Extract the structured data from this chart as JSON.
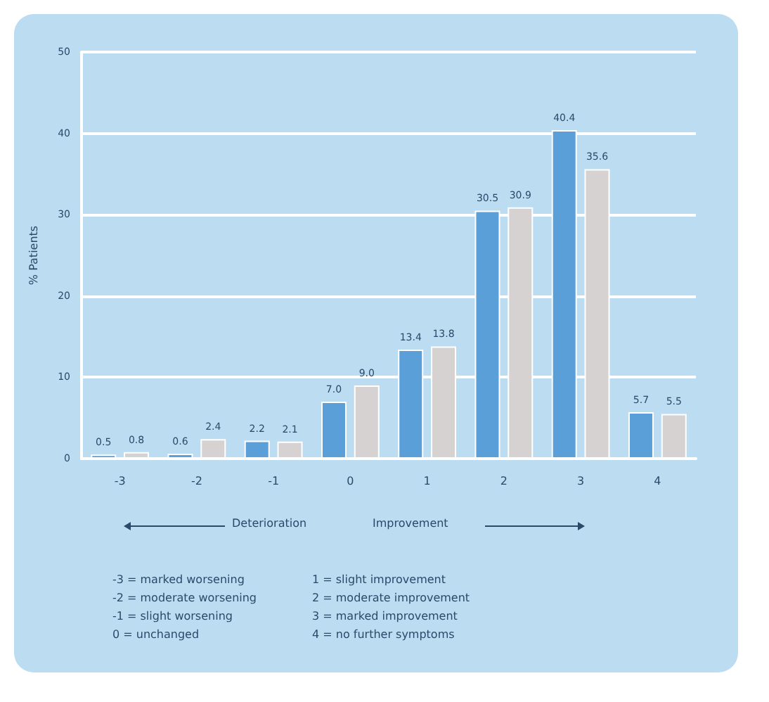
{
  "chart_data": {
    "type": "bar",
    "ylabel": "% Patients",
    "categories": [
      "-3",
      "-2",
      "-1",
      "0",
      "1",
      "2",
      "3",
      "4"
    ],
    "series": [
      {
        "color": "#5a9fd8",
        "values": [
          0.5,
          0.6,
          2.2,
          7.0,
          13.4,
          30.5,
          40.4,
          5.7
        ],
        "value_labels": [
          "0.5",
          "0.6",
          "2.2",
          "7.0",
          "13.4",
          "30.5",
          "40.4",
          "5.7"
        ]
      },
      {
        "color": "#d6d2d2",
        "values": [
          0.8,
          2.4,
          2.1,
          9.0,
          13.8,
          30.9,
          35.6,
          5.5
        ],
        "value_labels": [
          "0.8",
          "2.4",
          "2.1",
          "9.0",
          "13.8",
          "30.9",
          "35.6",
          "5.5"
        ]
      }
    ],
    "ylim": [
      0,
      50
    ],
    "yticks": [
      0,
      10,
      20,
      30,
      40,
      50
    ],
    "grid": "y",
    "annotations": [
      "Deterioration",
      "Improvement",
      "-3 = marked worsening",
      "-2 = moderate worsening",
      "-1 = slight worsening",
      "0 = unchanged",
      "1 = slight improvement",
      "2 = moderate improvement",
      "3 = marked improvement",
      "4 = no further symptoms"
    ]
  }
}
